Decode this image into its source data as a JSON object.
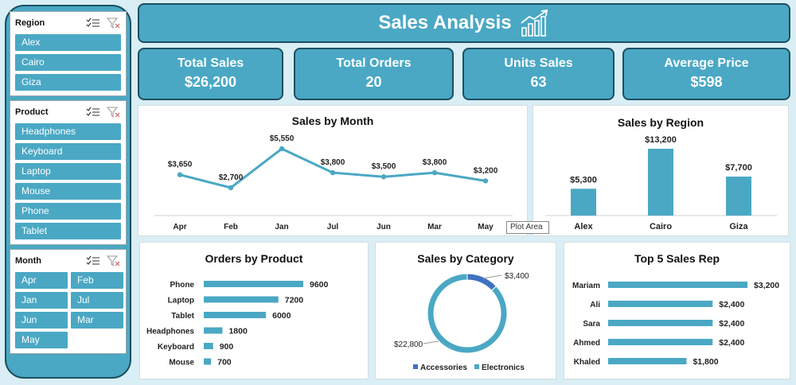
{
  "header": {
    "title": "Sales Analysis",
    "icon": "growth-chart-icon"
  },
  "slicers": {
    "region": {
      "title": "Region",
      "items": [
        "Alex",
        "Cairo",
        "Giza"
      ]
    },
    "product": {
      "title": "Product",
      "items": [
        "Headphones",
        "Keyboard",
        "Laptop",
        "Mouse",
        "Phone",
        "Tablet"
      ]
    },
    "month": {
      "title": "Month",
      "items": [
        "Apr",
        "Feb",
        "Jan",
        "Jul",
        "Jun",
        "Mar",
        "May"
      ]
    }
  },
  "kpis": [
    {
      "label": "Total Sales",
      "value": "$26,200"
    },
    {
      "label": "Total Orders",
      "value": "20"
    },
    {
      "label": "Units Sales",
      "value": "63"
    },
    {
      "label": "Average Price",
      "value": "$598"
    }
  ],
  "tooltip": "Plot Area",
  "colors": {
    "accent": "#4aa8c4",
    "dark": "#1d4f60",
    "accessories": "#3f73c1"
  },
  "chart_data": [
    {
      "type": "line",
      "title": "Sales by Month",
      "categories": [
        "Apr",
        "Feb",
        "Jan",
        "Jul",
        "Jun",
        "Mar",
        "May"
      ],
      "values": [
        3650,
        2700,
        5550,
        3800,
        3500,
        3800,
        3200
      ],
      "labels": [
        "$3,650",
        "$2,700",
        "$5,550",
        "$3,800",
        "$3,500",
        "$3,800",
        "$3,200"
      ]
    },
    {
      "type": "bar",
      "title": "Sales by Region",
      "categories": [
        "Alex",
        "Cairo",
        "Giza"
      ],
      "values": [
        5300,
        13200,
        7700
      ],
      "labels": [
        "$5,300",
        "$13,200",
        "$7,700"
      ]
    },
    {
      "type": "bar",
      "orientation": "horizontal",
      "title": "Orders by Product",
      "categories": [
        "Phone",
        "Laptop",
        "Tablet",
        "Headphones",
        "Keyboard",
        "Mouse"
      ],
      "values": [
        9600,
        7200,
        6000,
        1800,
        900,
        700
      ],
      "labels": [
        "9600",
        "7200",
        "6000",
        "1800",
        "900",
        "700"
      ]
    },
    {
      "type": "pie",
      "title": "Sales by Category",
      "categories": [
        "Accessories",
        "Electronics"
      ],
      "values": [
        3400,
        22800
      ],
      "labels": [
        "$3,400",
        "$22,800"
      ],
      "legend": "bottom"
    },
    {
      "type": "bar",
      "orientation": "horizontal",
      "title": "Top 5 Sales Rep",
      "categories": [
        "Mariam",
        "Ali",
        "Sara",
        "Ahmed",
        "Khaled"
      ],
      "values": [
        3200,
        2400,
        2400,
        2400,
        1800
      ],
      "labels": [
        "$3,200",
        "$2,400",
        "$2,400",
        "$2,400",
        "$1,800"
      ]
    }
  ]
}
